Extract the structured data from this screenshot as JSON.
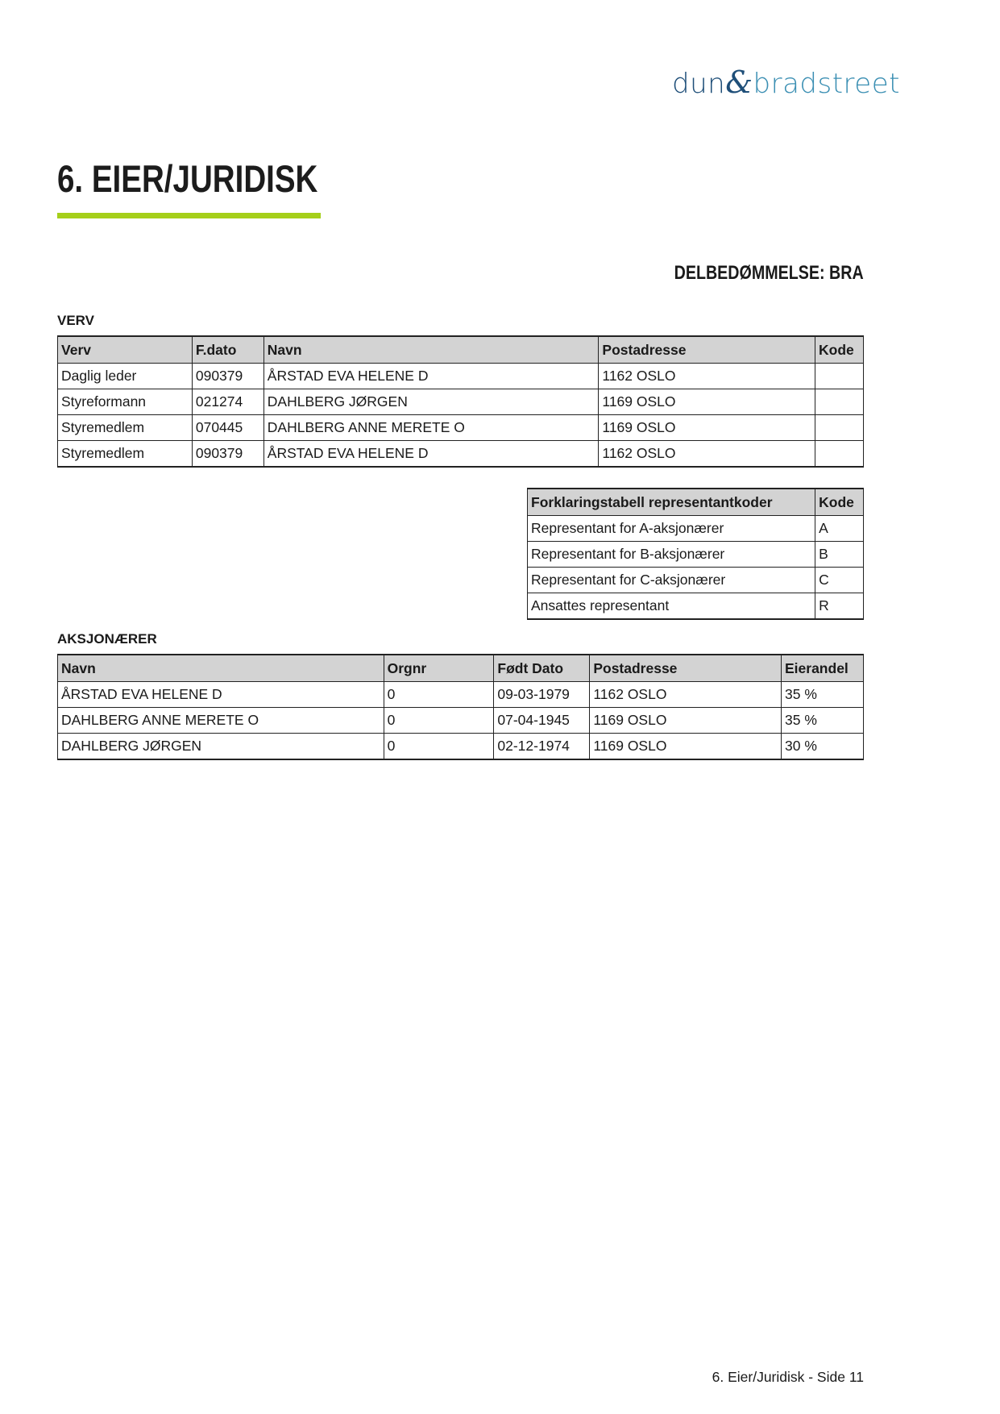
{
  "logo": {
    "part1": "dun",
    "amp": "&",
    "part2": "bradstreet"
  },
  "title": "6. EIER/JURIDISK",
  "accent_color": "#a5cf1a",
  "rating": "DELBEDØMMELSE: BRA",
  "verv": {
    "label": "VERV",
    "headers": [
      "Verv",
      "F.dato",
      "Navn",
      "Postadresse",
      "Kode"
    ],
    "rows": [
      [
        "Daglig leder",
        "090379",
        "ÅRSTAD EVA HELENE D",
        "1162 OSLO",
        ""
      ],
      [
        "Styreformann",
        "021274",
        "DAHLBERG JØRGEN",
        "1169 OSLO",
        ""
      ],
      [
        "Styremedlem",
        "070445",
        "DAHLBERG ANNE MERETE O",
        "1169 OSLO",
        ""
      ],
      [
        "Styremedlem",
        "090379",
        "ÅRSTAD EVA HELENE D",
        "1162 OSLO",
        ""
      ]
    ]
  },
  "codes": {
    "headers": [
      "Forklaringstabell representantkoder",
      "Kode"
    ],
    "rows": [
      [
        "Representant for A-aksjonærer",
        "A"
      ],
      [
        "Representant for B-aksjonærer",
        "B"
      ],
      [
        "Representant for C-aksjonærer",
        "C"
      ],
      [
        "Ansattes representant",
        "R"
      ]
    ]
  },
  "aksjonaerer": {
    "label": "AKSJONÆRER",
    "headers": [
      "Navn",
      "Orgnr",
      "Født Dato",
      "Postadresse",
      "Eierandel"
    ],
    "rows": [
      [
        "ÅRSTAD EVA HELENE D",
        "0",
        "09-03-1979",
        "1162 OSLO",
        "35 %"
      ],
      [
        "DAHLBERG ANNE MERETE O",
        "0",
        "07-04-1945",
        "1169 OSLO",
        "35 %"
      ],
      [
        "DAHLBERG JØRGEN",
        "0",
        "02-12-1974",
        "1169 OSLO",
        "30 %"
      ]
    ]
  },
  "footer": "6. Eier/Juridisk - Side 11"
}
